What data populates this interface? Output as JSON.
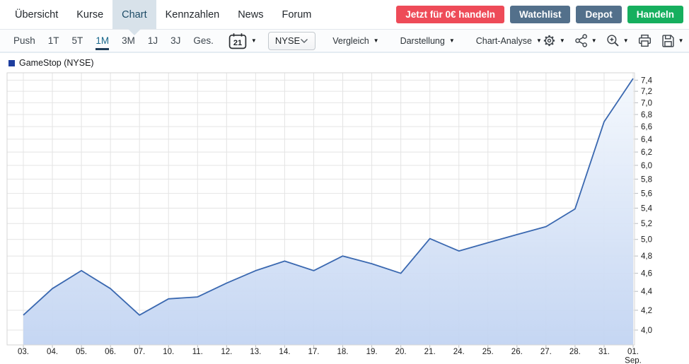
{
  "nav": {
    "items": [
      {
        "label": "Übersicht",
        "active": false
      },
      {
        "label": "Kurse",
        "active": false
      },
      {
        "label": "Chart",
        "active": true
      },
      {
        "label": "Kennzahlen",
        "active": false
      },
      {
        "label": "News",
        "active": false
      },
      {
        "label": "Forum",
        "active": false
      }
    ],
    "active_tab_bg": "#d8e2ea",
    "active_tab_text": "#1d4b66",
    "buttons": [
      {
        "id": "trade-cta",
        "label": "Jetzt für 0€ handeln",
        "bg": "#ee4b58"
      },
      {
        "id": "watchlist",
        "label": "Watchlist",
        "bg": "#53708b"
      },
      {
        "id": "depot",
        "label": "Depot",
        "bg": "#53708b"
      },
      {
        "id": "handeln",
        "label": "Handeln",
        "bg": "#16af5e"
      }
    ]
  },
  "toolbar": {
    "periods": [
      "Push",
      "1T",
      "5T",
      "1M",
      "3M",
      "1J",
      "3J",
      "Ges."
    ],
    "active_period": "1M",
    "active_period_color": "#19688c",
    "calendar": {
      "value": "21"
    },
    "exchange": {
      "value": "NYSE"
    },
    "menus": [
      "Vergleich",
      "Darstellung",
      "Chart-Analyse"
    ],
    "icon_buttons": [
      {
        "name": "settings",
        "icon": "gear-icon",
        "dropdown": true
      },
      {
        "name": "share",
        "icon": "share-icon",
        "dropdown": true
      },
      {
        "name": "zoom-in",
        "icon": "zoom-in-icon",
        "dropdown": true
      },
      {
        "name": "print",
        "icon": "printer-icon",
        "dropdown": false
      },
      {
        "name": "save",
        "icon": "save-icon",
        "dropdown": true
      }
    ]
  },
  "chart_data": {
    "type": "area",
    "title": "GameStop (NYSE)",
    "legend": {
      "label": "GameStop (NYSE)",
      "marker_color": "#1e3e9e",
      "position": "top-left"
    },
    "x_labels": [
      "03.",
      "04.",
      "05.",
      "06.",
      "07.",
      "10.",
      "11.",
      "12.",
      "13.",
      "14.",
      "17.",
      "18.",
      "19.",
      "20.",
      "21.",
      "24.",
      "25.",
      "26.",
      "27.",
      "28.",
      "31.",
      "01."
    ],
    "x_last_sublabel": "Sep.",
    "values": [
      4.15,
      4.43,
      4.63,
      4.43,
      4.15,
      4.32,
      4.34,
      4.49,
      4.63,
      4.74,
      4.63,
      4.8,
      4.71,
      4.6,
      5.01,
      4.86,
      4.96,
      5.06,
      5.16,
      5.39,
      6.68,
      7.43
    ],
    "y_axis": {
      "min": 4.0,
      "max": 7.4,
      "step": 0.2,
      "scale": "log",
      "side": "right",
      "decimal_separator": ","
    },
    "grid": true,
    "colors": {
      "line": "#3a68b0",
      "fill_top": "#f4f8fd",
      "fill_bottom": "#c2d4f2",
      "grid": "#e4e4e4",
      "border": "#d6d6d6",
      "tick": "#b8bcc0",
      "tick_text": "#1a1a1a"
    }
  }
}
